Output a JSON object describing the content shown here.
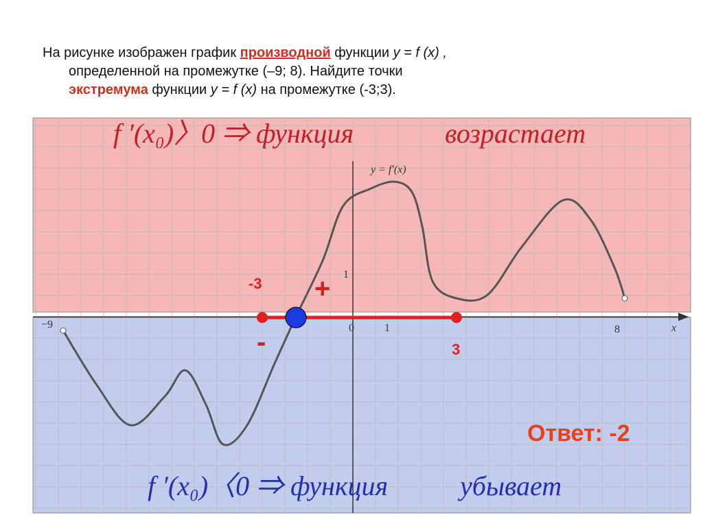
{
  "task": {
    "lines": [
      [
        {
          "text": "На рисунке изображен график "
        },
        {
          "text": "производной",
          "style": "red-underline"
        },
        {
          "text": " функции "
        },
        {
          "text": "y = f (x) ,",
          "style": "italic"
        }
      ],
      [
        {
          "text": "определенной на промежутке (–9; 8). Найдите точки"
        }
      ],
      [
        {
          "text": "экстремума",
          "style": "red"
        },
        {
          "text": " функции "
        },
        {
          "text": " y = f (x)",
          "style": "italic"
        },
        {
          "text": " на промежутке (-3;3)."
        }
      ]
    ]
  },
  "rule_positive": {
    "formula": "f ′(x₀)〉0 ⇒ функция",
    "word": "возрастает"
  },
  "rule_negative": {
    "formula": "f ′(x₀)〈0 ⇒ функция",
    "word": "убывает"
  },
  "graph": {
    "curve_label": "y = f′(x)",
    "x_labels": [
      "−9",
      "0",
      "1",
      "8"
    ],
    "axis_x": "x",
    "y_label": "1",
    "interval_left": "-3",
    "interval_right": "3",
    "plus": "+",
    "minus": "-"
  },
  "answer": "Ответ: -2"
}
